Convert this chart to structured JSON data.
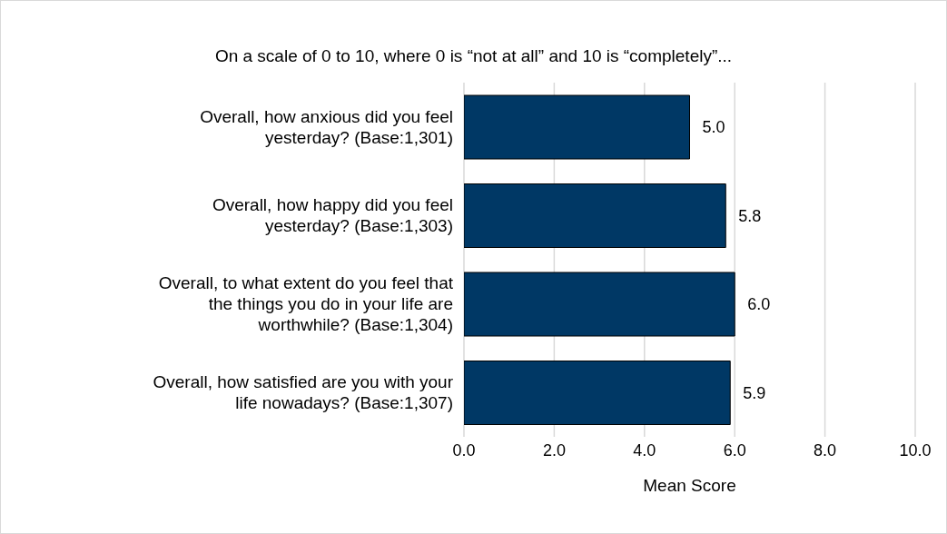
{
  "chart_data": {
    "type": "bar",
    "orientation": "horizontal",
    "title": "On a scale of 0 to 10, where 0 is “not at all” and 10 is “completely”...",
    "categories": [
      "Overall, how anxious did you feel yesterday? (Base:1,301)",
      "Overall, how happy did you feel yesterday? (Base:1,303)",
      "Overall, to what extent do you feel that the things you do in your life are worthwhile? (Base:1,304)",
      "Overall, how satisfied are you with your life nowadays? (Base:1,307)"
    ],
    "values": [
      5.0,
      5.8,
      6.0,
      5.9
    ],
    "value_labels": [
      "5.0",
      "5.8",
      "6.0",
      "5.9"
    ],
    "color": "#003865",
    "xlabel": "Mean Score",
    "xlim": [
      0,
      10
    ],
    "xticks": [
      {
        "value": 0,
        "label": "0.0"
      },
      {
        "value": 2,
        "label": "2.0"
      },
      {
        "value": 4,
        "label": "4.0"
      },
      {
        "value": 6,
        "label": "6.0"
      },
      {
        "value": 8,
        "label": "8.0"
      },
      {
        "value": 10,
        "label": "10.0"
      }
    ],
    "grid": "x"
  }
}
